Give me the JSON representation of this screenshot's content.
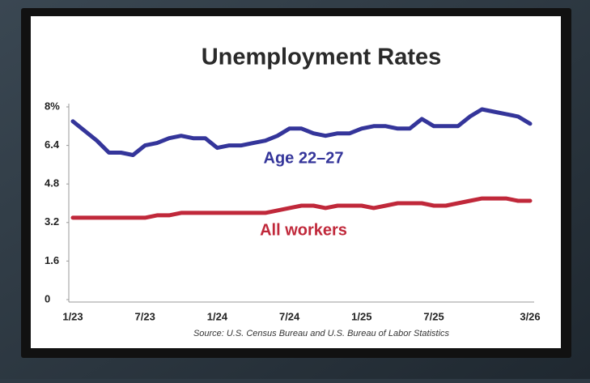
{
  "chart_data": {
    "type": "line",
    "title": "Unemployment Rates",
    "source": "Source: U.S. Census Bureau and U.S. Bureau of Labor Statistics",
    "categories": [
      "1/23",
      null,
      null,
      null,
      null,
      null,
      "7/23",
      null,
      null,
      null,
      null,
      null,
      "1/24",
      null,
      null,
      null,
      null,
      null,
      "7/24",
      null,
      null,
      null,
      null,
      null,
      "1/25",
      null,
      null,
      null,
      null,
      null,
      "7/25",
      null,
      null,
      null,
      null,
      null,
      null,
      null,
      "3/26"
    ],
    "series": [
      {
        "name": "Age 22–27",
        "color": "#34359a",
        "values": [
          7.4,
          7.0,
          6.6,
          6.1,
          6.1,
          6.0,
          6.4,
          6.5,
          6.7,
          6.8,
          6.7,
          6.7,
          6.3,
          6.4,
          6.4,
          6.5,
          6.6,
          6.8,
          7.1,
          7.1,
          6.9,
          6.8,
          6.9,
          6.9,
          7.1,
          7.2,
          7.2,
          7.1,
          7.1,
          7.5,
          7.2,
          7.2,
          7.2,
          7.6,
          7.9,
          7.8,
          7.7,
          7.6,
          7.3
        ]
      },
      {
        "name": "All workers",
        "color": "#c0283a",
        "values": [
          3.4,
          3.4,
          3.4,
          3.4,
          3.4,
          3.4,
          3.4,
          3.5,
          3.5,
          3.6,
          3.6,
          3.6,
          3.6,
          3.6,
          3.6,
          3.6,
          3.6,
          3.7,
          3.8,
          3.9,
          3.9,
          3.8,
          3.9,
          3.9,
          3.9,
          3.8,
          3.9,
          4.0,
          4.0,
          4.0,
          3.9,
          3.9,
          4.0,
          4.1,
          4.2,
          4.2,
          4.2,
          4.1,
          4.1
        ]
      }
    ],
    "ylim": [
      0,
      8
    ],
    "yticks": [
      0,
      1.6,
      3.2,
      4.8,
      6.4,
      {
        "value": 8,
        "label": "8%"
      }
    ],
    "grid": false
  }
}
